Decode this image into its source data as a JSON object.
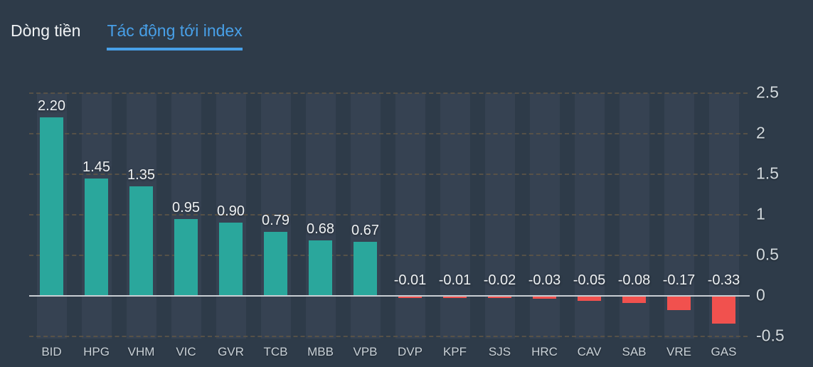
{
  "tabs": {
    "items": [
      {
        "id": "dong-tien",
        "label": "Dòng tiền",
        "active": false
      },
      {
        "id": "tac-dong-toi-index",
        "label": "Tác động tới index",
        "active": true
      }
    ]
  },
  "colors": {
    "background": "#2e3b49",
    "column_band": "#364252",
    "positive_bar": "#2aa79c",
    "negative_bar": "#f1514e",
    "active_tab": "#48a0e8",
    "inactive_tab": "#f0f3f5",
    "axis_text": "#c9d1d7",
    "value_text": "#eef1f3",
    "zero_line": "#c9ced3",
    "gridline": "#5e5547"
  },
  "chart_data": {
    "type": "bar",
    "title": "Tác động tới index",
    "categories": [
      "BID",
      "HPG",
      "VHM",
      "VIC",
      "GVR",
      "TCB",
      "MBB",
      "VPB",
      "DVP",
      "KPF",
      "SJS",
      "HRC",
      "CAV",
      "SAB",
      "VRE",
      "GAS"
    ],
    "values": [
      2.2,
      1.45,
      1.35,
      0.95,
      0.9,
      0.79,
      0.68,
      0.67,
      -0.01,
      -0.01,
      -0.02,
      -0.03,
      -0.05,
      -0.08,
      -0.17,
      -0.33
    ],
    "value_labels": [
      "2.20",
      "1.45",
      "1.35",
      "0.95",
      "0.90",
      "0.79",
      "0.68",
      "0.67",
      "-0.01",
      "-0.01",
      "-0.02",
      "-0.03",
      "-0.05",
      "-0.08",
      "-0.17",
      "-0.33"
    ],
    "xlabel": "",
    "ylabel": "",
    "ylim": [
      -0.5,
      2.5
    ],
    "y_axis": {
      "side": "right",
      "ticks": [
        2.5,
        2,
        1.5,
        1,
        0.5,
        0,
        -0.5
      ],
      "tick_labels": [
        "2.5",
        "2",
        "1.5",
        "1",
        "0.5",
        "0",
        "-0.5"
      ]
    },
    "grid": "horizontal-dashed",
    "legend": "none"
  }
}
